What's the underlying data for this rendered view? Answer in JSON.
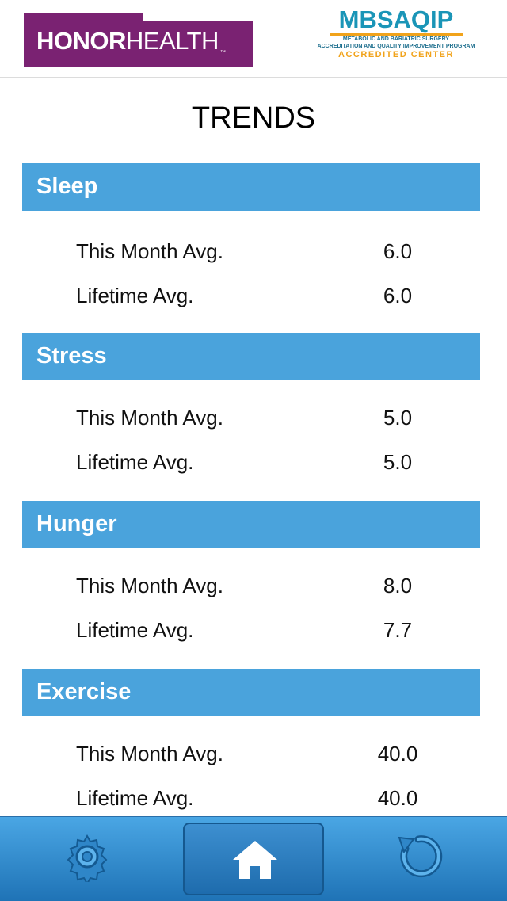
{
  "header": {
    "logo_left": {
      "bold": "HONOR",
      "light": "HEALTH",
      "tm": "™"
    },
    "logo_right": {
      "word": "MBSAQIP",
      "line1": "METABOLIC AND BARIATRIC SURGERY",
      "line2": "ACCREDITATION AND QUALITY IMPROVEMENT PROGRAM",
      "line3": "ACCREDITED CENTER"
    }
  },
  "title": "TRENDS",
  "sections": [
    {
      "name": "Sleep",
      "rows": [
        {
          "label": "This Month Avg.",
          "value": "6.0"
        },
        {
          "label": "Lifetime Avg.",
          "value": "6.0"
        }
      ]
    },
    {
      "name": "Stress",
      "rows": [
        {
          "label": "This Month Avg.",
          "value": "5.0"
        },
        {
          "label": "Lifetime Avg.",
          "value": "5.0"
        }
      ]
    },
    {
      "name": "Hunger",
      "rows": [
        {
          "label": "This Month Avg.",
          "value": "8.0"
        },
        {
          "label": "Lifetime Avg.",
          "value": "7.7"
        }
      ]
    },
    {
      "name": "Exercise",
      "rows": [
        {
          "label": "This Month Avg.",
          "value": "40.0"
        },
        {
          "label": "Lifetime Avg.",
          "value": "40.0"
        }
      ]
    }
  ],
  "footer": {
    "icons": [
      "gear-icon",
      "home-icon",
      "refresh-icon"
    ]
  },
  "colors": {
    "brand_purple": "#7a2272",
    "section_blue": "#4aa3dc",
    "footer_top": "#4aa6e4",
    "footer_bottom": "#1f73b6",
    "mbs_teal": "#1a95b7",
    "mbs_orange": "#f1a31b"
  }
}
